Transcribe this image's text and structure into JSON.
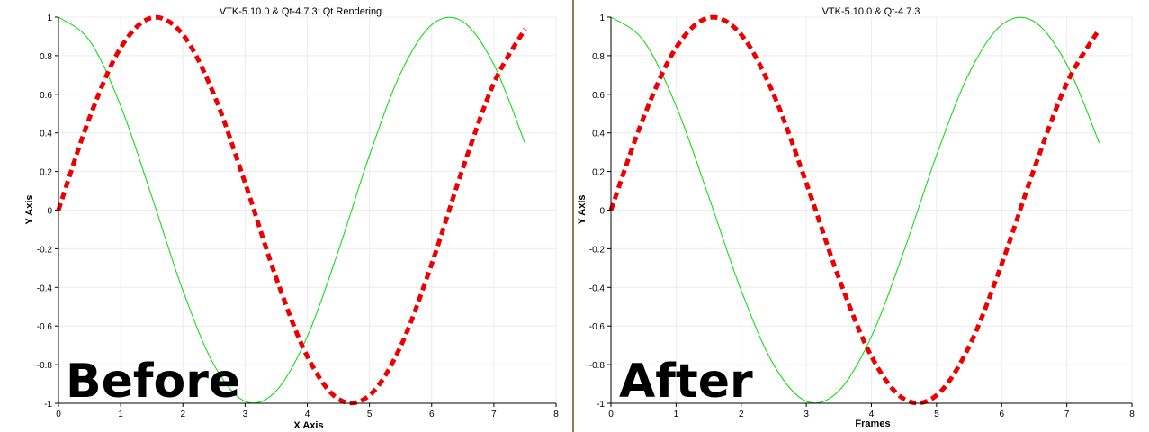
{
  "panels": {
    "before": {
      "overlay_label": "Before",
      "chart": {
        "type": "line",
        "title": "VTK-5.10.0 & Qt-4.7.3: Qt Rendering",
        "xlabel": "X Axis",
        "ylabel": "Y Axis",
        "xlim": [
          0,
          8
        ],
        "ylim": [
          -1,
          1
        ],
        "xticks": [
          "0",
          "1",
          "2",
          "3",
          "4",
          "5",
          "6",
          "7",
          "8"
        ],
        "yticks": [
          "-1",
          "-0.8",
          "-0.6",
          "-0.4",
          "-0.2",
          "0",
          "0.2",
          "0.4",
          "0.6",
          "0.8",
          "1"
        ],
        "grid": true
      }
    },
    "after": {
      "overlay_label": "After",
      "chart": {
        "type": "line",
        "title": "VTK-5.10.0 & Qt-4.7.3",
        "xlabel": "Frames",
        "ylabel": "Y Axis",
        "xlim": [
          0,
          8
        ],
        "ylim": [
          -1,
          1
        ],
        "xticks": [
          "0",
          "1",
          "2",
          "3",
          "4",
          "5",
          "6",
          "7",
          "8"
        ],
        "yticks": [
          "-1",
          "-0.8",
          "-0.6",
          "-0.4",
          "-0.2",
          "0",
          "0.2",
          "0.4",
          "0.6",
          "0.8",
          "1"
        ],
        "grid": true
      }
    }
  },
  "chart_data": [
    {
      "type": "line",
      "title": "VTK-5.10.0 & Qt-4.7.3: Qt Rendering",
      "xlabel": "X Axis",
      "ylabel": "Y Axis",
      "xlim": [
        0,
        8
      ],
      "ylim": [
        -1,
        1
      ],
      "grid": true,
      "x": [
        0,
        0.5,
        1,
        1.5,
        2,
        2.5,
        3,
        3.5,
        4,
        4.5,
        5,
        5.5,
        6,
        6.5,
        7,
        7.5
      ],
      "series": [
        {
          "style": "solid",
          "color": "#00dd00",
          "values": [
            1,
            0.878,
            0.54,
            0.071,
            -0.416,
            -0.801,
            -0.99,
            -0.936,
            -0.654,
            -0.211,
            0.284,
            0.709,
            0.96,
            0.977,
            0.754,
            0.347
          ]
        },
        {
          "style": "dashed",
          "color": "#ee0000",
          "values": [
            0,
            0.479,
            0.841,
            0.997,
            0.909,
            0.598,
            0.141,
            -0.351,
            -0.757,
            -0.978,
            -0.959,
            -0.706,
            -0.279,
            0.215,
            0.657,
            0.938
          ]
        }
      ]
    },
    {
      "type": "line",
      "title": "VTK-5.10.0 & Qt-4.7.3",
      "xlabel": "Frames",
      "ylabel": "Y Axis",
      "xlim": [
        0,
        8
      ],
      "ylim": [
        -1,
        1
      ],
      "grid": true,
      "x": [
        0,
        0.5,
        1,
        1.5,
        2,
        2.5,
        3,
        3.5,
        4,
        4.5,
        5,
        5.5,
        6,
        6.5,
        7,
        7.5
      ],
      "series": [
        {
          "style": "solid",
          "color": "#00dd00",
          "values": [
            1,
            0.878,
            0.54,
            0.071,
            -0.416,
            -0.801,
            -0.99,
            -0.936,
            -0.654,
            -0.211,
            0.284,
            0.709,
            0.96,
            0.977,
            0.754,
            0.347
          ]
        },
        {
          "style": "dashed",
          "color": "#ee0000",
          "values": [
            0,
            0.479,
            0.841,
            0.997,
            0.909,
            0.598,
            0.141,
            -0.351,
            -0.757,
            -0.978,
            -0.959,
            -0.706,
            -0.279,
            0.215,
            0.657,
            0.938
          ]
        }
      ]
    }
  ]
}
